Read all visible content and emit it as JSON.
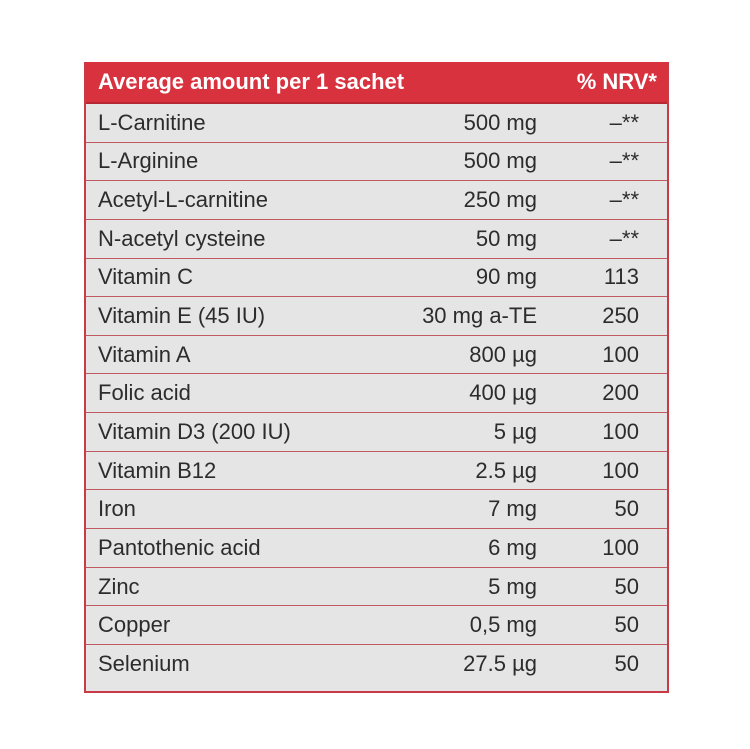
{
  "table": {
    "header": {
      "label": "Average amount per 1 sachet",
      "nrv": "% NRV*"
    },
    "rows": [
      {
        "name": "L-Carnitine",
        "amount": "500 mg",
        "nrv": "–**"
      },
      {
        "name": "L-Arginine",
        "amount": "500 mg",
        "nrv": "–**"
      },
      {
        "name": "Acetyl-L-carnitine",
        "amount": "250 mg",
        "nrv": "–**"
      },
      {
        "name": "N-acetyl cysteine",
        "amount": "50 mg",
        "nrv": "–**"
      },
      {
        "name": "Vitamin C",
        "amount": "90 mg",
        "nrv": "113"
      },
      {
        "name": "Vitamin E (45 IU)",
        "amount": "30 mg a-TE",
        "nrv": "250"
      },
      {
        "name": "Vitamin A",
        "amount": "800 µg",
        "nrv": "100"
      },
      {
        "name": "Folic acid",
        "amount": "400 µg",
        "nrv": "200"
      },
      {
        "name": "Vitamin D3 (200 IU)",
        "amount": "5 µg",
        "nrv": "100"
      },
      {
        "name": "Vitamin B12",
        "amount": "2.5 µg",
        "nrv": "100"
      },
      {
        "name": "Iron",
        "amount": "7 mg",
        "nrv": "50"
      },
      {
        "name": "Pantothenic acid",
        "amount": "6 mg",
        "nrv": "100"
      },
      {
        "name": "Zinc",
        "amount": "5 mg",
        "nrv": "50"
      },
      {
        "name": "Copper",
        "amount": "0,5 mg",
        "nrv": "50"
      },
      {
        "name": "Selenium",
        "amount": "27.5 µg",
        "nrv": "50"
      }
    ]
  },
  "colors": {
    "header_bg": "#d8323f",
    "row_divider": "#c05a60",
    "panel_bg": "#e4e5e4"
  }
}
